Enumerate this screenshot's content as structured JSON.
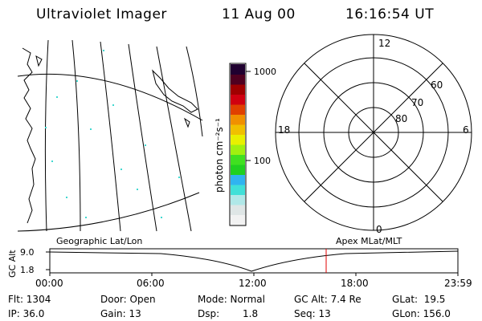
{
  "header": {
    "instrument": "Ultraviolet Imager",
    "date": "11 Aug 00",
    "time": "16:16:54 UT"
  },
  "colorbar": {
    "ticks": [
      "1000",
      "100"
    ],
    "unit_label": "photon cm⁻²s⁻¹",
    "colors": [
      "#f2f2f2",
      "#dfe6e6",
      "#b0e8e8",
      "#40e0d8",
      "#30b4f0",
      "#20d020",
      "#40e020",
      "#a0f010",
      "#e8f000",
      "#f0c000",
      "#f09000",
      "#e04000",
      "#d00010",
      "#a00000",
      "#500020",
      "#200030"
    ]
  },
  "polar": {
    "mlt_labels": {
      "top": "12",
      "left": "18",
      "right": "6",
      "bottom": "0"
    },
    "lat_labels": [
      "60",
      "70",
      "80"
    ]
  },
  "timeline": {
    "left_caption": "Geographic Lat/Lon",
    "right_caption": "Apex MLat/MLT",
    "axis_title": "GC Alt",
    "y_ticks": [
      "9.0",
      "1.8"
    ],
    "x_ticks": [
      "00:00",
      "06:00",
      "12:00",
      "18:00",
      "23:59"
    ],
    "marker_color": "#e00000"
  },
  "info": {
    "flt": "Flt: 1304",
    "ip": "IP: 36.0",
    "door": "Door: Open",
    "gain": "Gain: 13",
    "mode": "Mode: Normal",
    "dsp_label": "Dsp:",
    "dsp_value": "1.8",
    "gc_alt": "GC Alt: 7.4 Re",
    "seq": "Seq: 13",
    "glat": "GLat:  19.5",
    "glon": "GLon: 156.0"
  }
}
